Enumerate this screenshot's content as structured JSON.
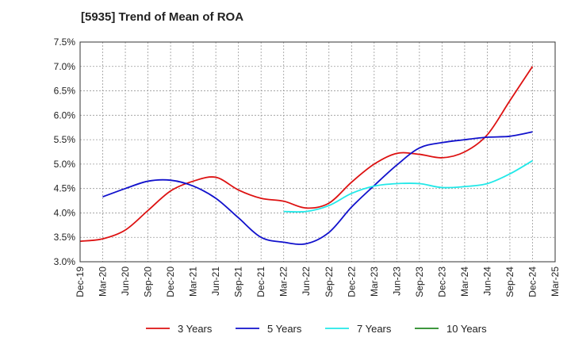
{
  "chart_data": {
    "type": "line",
    "title": "[5935]  Trend of Mean of ROA",
    "xlabel": "",
    "ylabel": "",
    "categories": [
      "Dec-19",
      "Mar-20",
      "Jun-20",
      "Sep-20",
      "Dec-20",
      "Mar-21",
      "Jun-21",
      "Sep-21",
      "Dec-21",
      "Mar-22",
      "Jun-22",
      "Sep-22",
      "Dec-22",
      "Mar-23",
      "Jun-23",
      "Sep-23",
      "Dec-23",
      "Mar-24",
      "Jun-24",
      "Sep-24",
      "Dec-24",
      "Mar-25"
    ],
    "y_ticks": [
      "3.0%",
      "3.5%",
      "4.0%",
      "4.5%",
      "5.0%",
      "5.5%",
      "6.0%",
      "6.5%",
      "7.0%",
      "7.5%"
    ],
    "ylim": [
      3.0,
      7.5
    ],
    "y_unit": "%",
    "grid": true,
    "legend_position": "bottom",
    "series": [
      {
        "name": "3 Years",
        "color": "#dd1111",
        "values": [
          3.42,
          3.47,
          3.65,
          4.05,
          4.45,
          4.65,
          4.73,
          4.47,
          4.3,
          4.24,
          4.1,
          4.2,
          4.63,
          5.0,
          5.22,
          5.2,
          5.13,
          5.25,
          5.6,
          6.3,
          7.0,
          null
        ]
      },
      {
        "name": "5 Years",
        "color": "#1111cc",
        "values": [
          null,
          4.33,
          4.5,
          4.65,
          4.67,
          4.55,
          4.3,
          3.9,
          3.5,
          3.4,
          3.37,
          3.6,
          4.12,
          4.56,
          4.98,
          5.33,
          5.44,
          5.5,
          5.55,
          5.57,
          5.66,
          null
        ]
      },
      {
        "name": "7 Years",
        "color": "#22e8e8",
        "values": [
          null,
          null,
          null,
          null,
          null,
          null,
          null,
          null,
          null,
          4.03,
          4.03,
          4.15,
          4.4,
          4.55,
          4.6,
          4.6,
          4.52,
          4.54,
          4.6,
          4.8,
          5.07,
          null
        ]
      },
      {
        "name": "10 Years",
        "color": "#228822",
        "values": [
          null,
          null,
          null,
          null,
          null,
          null,
          null,
          null,
          null,
          null,
          null,
          null,
          null,
          null,
          null,
          null,
          null,
          null,
          null,
          null,
          null,
          null
        ]
      }
    ]
  }
}
